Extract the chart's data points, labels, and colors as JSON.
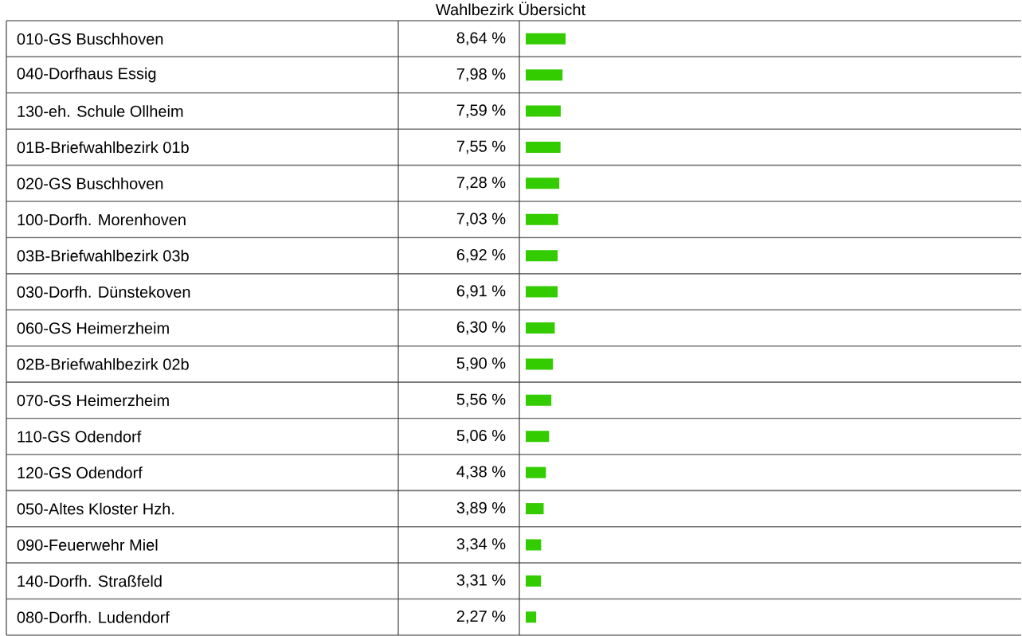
{
  "chart_data": {
    "type": "bar",
    "orientation": "horizontal",
    "title": "Wahlbezirk Übersicht",
    "categories": [
      "010-GS Buschhoven",
      "040-Dorfhaus Essig",
      "130-eh. Schule Ollheim",
      "01B-Briefwahlbezirk 01b",
      "020-GS Buschhoven",
      "100-Dorfh. Morenhoven",
      "03B-Briefwahlbezirk 03b",
      "030-Dorfh. Dünstekoven",
      "060-GS Heimerzheim",
      "02B-Briefwahlbezirk 02b",
      "070-GS Heimerzheim",
      "110-GS Odendorf",
      "120-GS Odendorf",
      "050-Altes Kloster Hzh.",
      "090-Feuerwehr Miel",
      "140-Dorfh. Straßfeld",
      "080-Dorfh. Ludendorf"
    ],
    "values": [
      8.64,
      7.98,
      7.59,
      7.55,
      7.28,
      7.03,
      6.92,
      6.91,
      6.3,
      5.9,
      5.56,
      5.06,
      4.38,
      3.89,
      3.34,
      3.31,
      2.27
    ],
    "value_labels": [
      "8,64 %",
      "7,98 %",
      "7,59 %",
      "7,55 %",
      "7,28 %",
      "7,03 %",
      "6,92 %",
      "6,91 %",
      "6,30 %",
      "5,90 %",
      "5,56 %",
      "5,06 %",
      "4,38 %",
      "3,89 %",
      "3,34 %",
      "3,31 %",
      "2,27 %"
    ],
    "color": "#33cc00"
  }
}
